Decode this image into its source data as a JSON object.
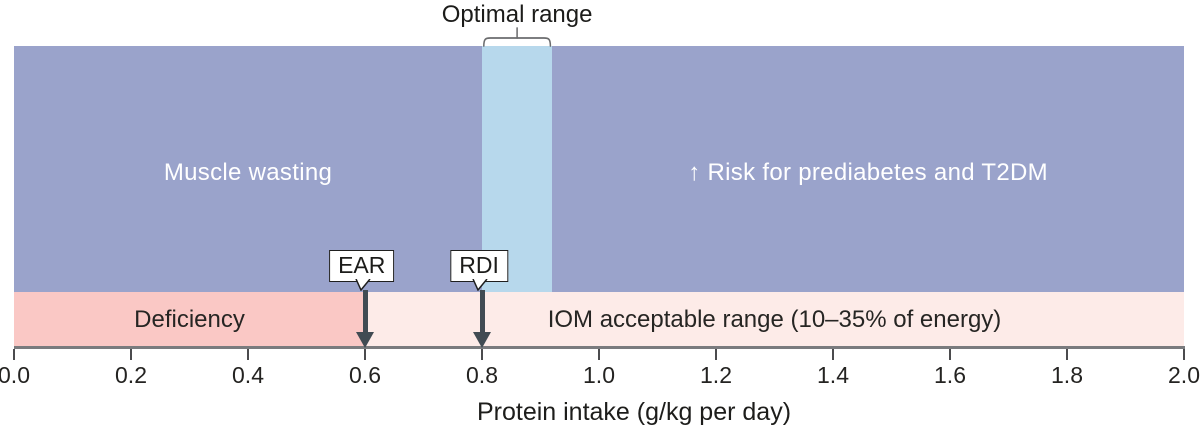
{
  "chart_data": {
    "type": "area",
    "title": "Optimal range",
    "xlabel": "Protein intake (g/kg per day)",
    "x_axis": {
      "min": 0.0,
      "max": 2.0,
      "tick_values": [
        0.0,
        0.2,
        0.4,
        0.6,
        0.8,
        1.0,
        1.2,
        1.4,
        1.6,
        1.8,
        2.0
      ],
      "tick_labels": [
        "0.0",
        "0.2",
        "0.4",
        "0.6",
        "0.8",
        "1.0",
        "1.2",
        "1.4",
        "1.6",
        "1.8",
        "2.0"
      ]
    },
    "regions": {
      "muscle_wasting": {
        "label": "Muscle wasting",
        "x_range": [
          0.0,
          0.8
        ],
        "color": "#9aa3cb",
        "text_color": "#ffffff"
      },
      "risk": {
        "label": "↑ Risk for prediabetes and T2DM",
        "x_range": [
          0.92,
          2.0
        ],
        "color": "#9aa3cb",
        "text_color": "#ffffff"
      },
      "optimal": {
        "label": "Optimal range",
        "x_range": [
          0.8,
          0.92
        ],
        "color": "#b7d8ec"
      },
      "deficiency": {
        "label": "Deficiency",
        "x_range": [
          0.0,
          0.6
        ],
        "color": "#fac8c5",
        "text_color": "#262523"
      },
      "iom": {
        "label": "IOM acceptable range (10–35% of energy)",
        "x_range": [
          0.6,
          2.0
        ],
        "color": "#fdebe8",
        "text_color": "#262523"
      }
    },
    "markers": [
      {
        "id": "ear",
        "label": "EAR",
        "value": 0.6
      },
      {
        "id": "rdi",
        "label": "RDI",
        "value": 0.8
      }
    ]
  },
  "colors": {
    "arrow": "#414b53",
    "axis_line": "#7a7b7e",
    "tick": "#4b4b4d",
    "callout_border": "#1f1f1f",
    "background": "#ffffff"
  }
}
